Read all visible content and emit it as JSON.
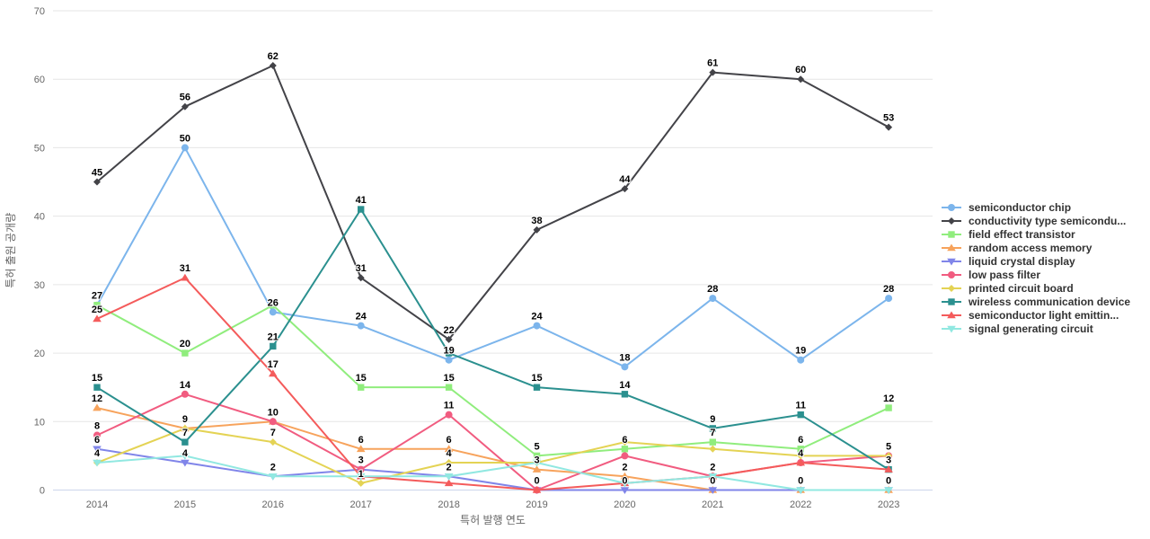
{
  "chart_data": {
    "type": "line",
    "title": "",
    "xlabel": "특허 발행 연도",
    "ylabel": "특허 출원 공개량",
    "categories": [
      "2014",
      "2015",
      "2016",
      "2017",
      "2018",
      "2019",
      "2020",
      "2021",
      "2022",
      "2023"
    ],
    "ylim": [
      0,
      70
    ],
    "ytick_interval": 10,
    "yticks": [
      "0",
      "10",
      "20",
      "30",
      "40",
      "50",
      "60",
      "70"
    ],
    "grid": true,
    "legend_position": "right",
    "series": [
      {
        "name": "semiconductor chip",
        "color": "#7cb5ec",
        "marker": "circle",
        "values": [
          27,
          50,
          26,
          24,
          19,
          24,
          18,
          28,
          19,
          28
        ]
      },
      {
        "name": "conductivity type semicondu...",
        "color": "#434348",
        "marker": "diamond",
        "values": [
          45,
          56,
          62,
          31,
          22,
          38,
          44,
          61,
          60,
          53
        ]
      },
      {
        "name": "field effect transistor",
        "color": "#90ed7d",
        "marker": "square",
        "values": [
          27,
          20,
          27,
          15,
          15,
          5,
          6,
          7,
          6,
          12
        ]
      },
      {
        "name": "random access memory",
        "color": "#f7a35c",
        "marker": "triangle",
        "values": [
          12,
          9,
          10,
          6,
          6,
          3,
          2,
          0,
          0,
          0
        ]
      },
      {
        "name": "liquid crystal display",
        "color": "#8085e9",
        "marker": "triangle-down",
        "values": [
          6,
          4,
          2,
          3,
          2,
          0,
          0,
          0,
          0,
          0
        ]
      },
      {
        "name": "low pass filter",
        "color": "#f15c80",
        "marker": "circle",
        "values": [
          8,
          14,
          10,
          3,
          11,
          0,
          5,
          2,
          4,
          5
        ]
      },
      {
        "name": "printed circuit board",
        "color": "#e4d354",
        "marker": "diamond",
        "values": [
          4,
          9,
          7,
          1,
          4,
          4,
          7,
          6,
          5,
          5
        ]
      },
      {
        "name": "wireless communication device",
        "color": "#2b908f",
        "marker": "square",
        "values": [
          15,
          7,
          21,
          41,
          20,
          15,
          14,
          9,
          11,
          3
        ]
      },
      {
        "name": "semiconductor light emittin...",
        "color": "#f45b5b",
        "marker": "triangle",
        "values": [
          25,
          31,
          17,
          2,
          1,
          0,
          1,
          2,
          4,
          3
        ]
      },
      {
        "name": "signal generating circuit",
        "color": "#91e8e1",
        "marker": "triangle-down",
        "values": [
          4,
          5,
          2,
          2,
          2,
          4,
          1,
          2,
          0,
          0
        ]
      }
    ],
    "colors": {
      "axis_label": "#666666",
      "axis_title": "#666666",
      "gridline": "#e6e6e6",
      "axis_line": "#ccd6eb",
      "data_label": "#000000",
      "legend_text": "#333333",
      "background": "#ffffff"
    }
  }
}
